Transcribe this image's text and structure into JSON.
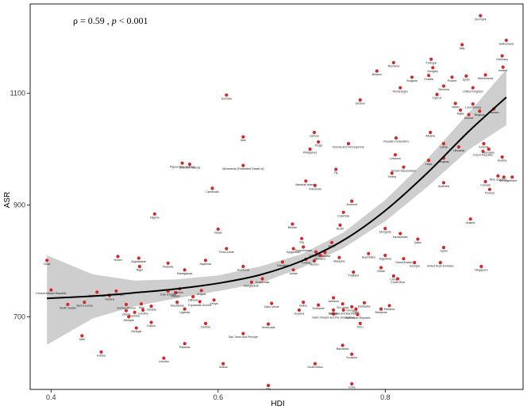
{
  "chart_data": {
    "type": "scatter",
    "title": "",
    "xlabel": "HDI",
    "ylabel": "ASR",
    "xlim": [
      0.375,
      0.965
    ],
    "ylim": [
      570,
      1260
    ],
    "xticks": [
      0.4,
      0.6,
      0.8
    ],
    "yticks": [
      700,
      900,
      1100
    ],
    "annotation": "ρ = 0.59 ,  p < 0.001",
    "grid": false,
    "legend": "none",
    "point_color": "#d62728",
    "fit_line": [
      [
        0.395,
        733
      ],
      [
        0.45,
        737
      ],
      [
        0.5,
        743
      ],
      [
        0.55,
        750
      ],
      [
        0.6,
        760
      ],
      [
        0.65,
        775
      ],
      [
        0.7,
        800
      ],
      [
        0.75,
        837
      ],
      [
        0.8,
        890
      ],
      [
        0.85,
        957
      ],
      [
        0.9,
        1032
      ],
      [
        0.945,
        1093
      ]
    ],
    "ci_upper": [
      [
        0.395,
        810
      ],
      [
        0.45,
        776
      ],
      [
        0.5,
        765
      ],
      [
        0.55,
        767
      ],
      [
        0.6,
        774
      ],
      [
        0.65,
        790
      ],
      [
        0.7,
        812
      ],
      [
        0.75,
        851
      ],
      [
        0.8,
        909
      ],
      [
        0.85,
        982
      ],
      [
        0.9,
        1065
      ],
      [
        0.945,
        1143
      ]
    ],
    "ci_lower": [
      [
        0.395,
        650
      ],
      [
        0.45,
        697
      ],
      [
        0.5,
        719
      ],
      [
        0.55,
        733
      ],
      [
        0.6,
        746
      ],
      [
        0.65,
        760
      ],
      [
        0.7,
        788
      ],
      [
        0.75,
        823
      ],
      [
        0.8,
        871
      ],
      [
        0.85,
        932
      ],
      [
        0.9,
        999
      ],
      [
        0.945,
        1043
      ]
    ],
    "points": [
      {
        "x": 0.914,
        "y": 1239,
        "label": "Denmark"
      },
      {
        "x": 0.945,
        "y": 1195,
        "label": "Switzerland"
      },
      {
        "x": 0.892,
        "y": 1187,
        "label": "Italy"
      },
      {
        "x": 0.94,
        "y": 1167,
        "label": "Germany"
      },
      {
        "x": 0.941,
        "y": 1147,
        "label": "Ireland"
      },
      {
        "x": 0.855,
        "y": 1161,
        "label": "Portugal"
      },
      {
        "x": 0.81,
        "y": 1155,
        "label": "Romania"
      },
      {
        "x": 0.857,
        "y": 1146,
        "label": "Hungary"
      },
      {
        "x": 0.79,
        "y": 1140,
        "label": "Belarus"
      },
      {
        "x": 0.832,
        "y": 1129,
        "label": "Bulgaria"
      },
      {
        "x": 0.852,
        "y": 1132,
        "label": "Croatia"
      },
      {
        "x": 0.88,
        "y": 1129,
        "label": "Poland"
      },
      {
        "x": 0.897,
        "y": 1131,
        "label": "Spain"
      },
      {
        "x": 0.92,
        "y": 1133,
        "label": "Netherlands"
      },
      {
        "x": 0.87,
        "y": 1113,
        "label": "Slovenia"
      },
      {
        "x": 0.818,
        "y": 1110,
        "label": "Montenegro"
      },
      {
        "x": 0.862,
        "y": 1098,
        "label": "Cyprus"
      },
      {
        "x": 0.905,
        "y": 1110,
        "label": "United Kingdom"
      },
      {
        "x": 0.77,
        "y": 1088,
        "label": "Ukraine"
      },
      {
        "x": 0.884,
        "y": 1082,
        "label": "Japan"
      },
      {
        "x": 0.905,
        "y": 1081,
        "label": "Luxembourg"
      },
      {
        "x": 0.93,
        "y": 1072,
        "label": "Sweden"
      },
      {
        "x": 0.89,
        "y": 1070,
        "label": "Malta"
      },
      {
        "x": 0.9,
        "y": 1062,
        "label": "Greece"
      },
      {
        "x": 0.913,
        "y": 1068,
        "label": "Belgium"
      },
      {
        "x": 0.61,
        "y": 1097,
        "label": "Somalia"
      },
      {
        "x": 0.63,
        "y": 1022,
        "label": "Mali"
      },
      {
        "x": 0.715,
        "y": 1030,
        "label": "Samoa"
      },
      {
        "x": 0.72,
        "y": 1013,
        "label": "Tonga"
      },
      {
        "x": 0.71,
        "y": 1000,
        "label": "Philippines"
      },
      {
        "x": 0.756,
        "y": 1010,
        "label": "Bosnia and Herzegovina"
      },
      {
        "x": 0.813,
        "y": 1020,
        "label": "Russian Federation"
      },
      {
        "x": 0.854,
        "y": 1030,
        "label": "Albania"
      },
      {
        "x": 0.87,
        "y": 1010,
        "label": "Latvia"
      },
      {
        "x": 0.888,
        "y": 1004,
        "label": "Lithuania"
      },
      {
        "x": 0.918,
        "y": 1010,
        "label": "Estonia"
      },
      {
        "x": 0.924,
        "y": 1000,
        "label": "Slovakia"
      },
      {
        "x": 0.917,
        "y": 996,
        "label": "Czech Republic"
      },
      {
        "x": 0.94,
        "y": 986,
        "label": "Austria"
      },
      {
        "x": 0.812,
        "y": 990,
        "label": "Lebanon"
      },
      {
        "x": 0.822,
        "y": 968,
        "label": "Brunei Darussalam"
      },
      {
        "x": 0.852,
        "y": 980,
        "label": "Libya"
      },
      {
        "x": 0.87,
        "y": 984,
        "label": "Uruguay"
      },
      {
        "x": 0.808,
        "y": 957,
        "label": "Turkey"
      },
      {
        "x": 0.741,
        "y": 964,
        "label": "Fiji"
      },
      {
        "x": 0.557,
        "y": 975,
        "label": "Papua New Guinea"
      },
      {
        "x": 0.566,
        "y": 973,
        "label": "Solomon Islands"
      },
      {
        "x": 0.63,
        "y": 971,
        "label": "Micronesia (Federated States of)"
      },
      {
        "x": 0.705,
        "y": 943,
        "label": "Marshall Islands"
      },
      {
        "x": 0.716,
        "y": 935,
        "label": "Indonesia"
      },
      {
        "x": 0.87,
        "y": 940,
        "label": "Australia"
      },
      {
        "x": 0.92,
        "y": 942,
        "label": "Canada"
      },
      {
        "x": 0.935,
        "y": 952,
        "label": "New Zealand"
      },
      {
        "x": 0.942,
        "y": 950,
        "label": "Norway"
      },
      {
        "x": 0.952,
        "y": 950,
        "label": "Iceland"
      },
      {
        "x": 0.925,
        "y": 928,
        "label": "Finland"
      },
      {
        "x": 0.593,
        "y": 930,
        "label": "Cambodia"
      },
      {
        "x": 0.76,
        "y": 907,
        "label": "Armenia"
      },
      {
        "x": 0.75,
        "y": 887,
        "label": "Colombia"
      },
      {
        "x": 0.902,
        "y": 875,
        "label": "Austria"
      },
      {
        "x": 0.524,
        "y": 884,
        "label": "Nigeria"
      },
      {
        "x": 0.6,
        "y": 857,
        "label": "Nepal"
      },
      {
        "x": 0.689,
        "y": 866,
        "label": "Bhutan"
      },
      {
        "x": 0.746,
        "y": 864,
        "label": "Brazil"
      },
      {
        "x": 0.8,
        "y": 858,
        "label": "Mongolia"
      },
      {
        "x": 0.818,
        "y": 849,
        "label": "Kazakhstan"
      },
      {
        "x": 0.839,
        "y": 839,
        "label": "Qatar"
      },
      {
        "x": 0.7,
        "y": 840,
        "label": "Iraq"
      },
      {
        "x": 0.736,
        "y": 833,
        "label": "Israel"
      },
      {
        "x": 0.87,
        "y": 824,
        "label": "Spain"
      },
      {
        "x": 0.61,
        "y": 822,
        "label": "Timor-Leste"
      },
      {
        "x": 0.69,
        "y": 822,
        "label": "Kyrgyzstan"
      },
      {
        "x": 0.702,
        "y": 825,
        "label": "Turkmenistan"
      },
      {
        "x": 0.717,
        "y": 816,
        "label": "Uzbekistan"
      },
      {
        "x": 0.728,
        "y": 815,
        "label": "Moldova"
      },
      {
        "x": 0.722,
        "y": 810,
        "label": "Morocco"
      },
      {
        "x": 0.745,
        "y": 806,
        "label": "Malaysia"
      },
      {
        "x": 0.78,
        "y": 813,
        "label": "Seychelles"
      },
      {
        "x": 0.8,
        "y": 810,
        "label": "Argentina"
      },
      {
        "x": 0.822,
        "y": 804,
        "label": "Saudi Arabia"
      },
      {
        "x": 0.835,
        "y": 797,
        "label": "Georgia"
      },
      {
        "x": 0.866,
        "y": 797,
        "label": "United Arab Emirates"
      },
      {
        "x": 0.915,
        "y": 790,
        "label": "Singapore"
      },
      {
        "x": 0.395,
        "y": 801,
        "label": "Chad"
      },
      {
        "x": 0.48,
        "y": 808,
        "label": "Yemen"
      },
      {
        "x": 0.505,
        "y": 805,
        "label": "Afghanistan"
      },
      {
        "x": 0.506,
        "y": 790,
        "label": "Niger"
      },
      {
        "x": 0.54,
        "y": 796,
        "label": "Rwanda"
      },
      {
        "x": 0.56,
        "y": 784,
        "label": "Madagascar"
      },
      {
        "x": 0.585,
        "y": 801,
        "label": "Myanmar"
      },
      {
        "x": 0.63,
        "y": 790,
        "label": "Honduras"
      },
      {
        "x": 0.677,
        "y": 798,
        "label": "Eswatini"
      },
      {
        "x": 0.69,
        "y": 784,
        "label": "Jordan"
      },
      {
        "x": 0.705,
        "y": 803,
        "label": "Tunisia"
      },
      {
        "x": 0.715,
        "y": 800,
        "label": "Mexico"
      },
      {
        "x": 0.762,
        "y": 780,
        "label": "Thailand"
      },
      {
        "x": 0.795,
        "y": 788,
        "label": "Oman"
      },
      {
        "x": 0.81,
        "y": 773,
        "label": "China"
      },
      {
        "x": 0.815,
        "y": 768,
        "label": "Costa Rica"
      },
      {
        "x": 0.653,
        "y": 768,
        "label": "Guatemala"
      },
      {
        "x": 0.64,
        "y": 762,
        "label": "Bangladesh"
      },
      {
        "x": 0.4,
        "y": 748,
        "label": "Central African Republic"
      },
      {
        "x": 0.455,
        "y": 744,
        "label": "Burkina Faso"
      },
      {
        "x": 0.47,
        "y": 738,
        "label": "Guinea"
      },
      {
        "x": 0.478,
        "y": 746,
        "label": "Mozambique"
      },
      {
        "x": 0.44,
        "y": 726,
        "label": "Sierra Leone"
      },
      {
        "x": 0.42,
        "y": 722,
        "label": "South Sudan"
      },
      {
        "x": 0.54,
        "y": 746,
        "label": "Cote d'Ivoire"
      },
      {
        "x": 0.549,
        "y": 743,
        "label": "Malawi"
      },
      {
        "x": 0.554,
        "y": 750,
        "label": "Benin"
      },
      {
        "x": 0.58,
        "y": 747,
        "label": "Angola"
      },
      {
        "x": 0.57,
        "y": 736,
        "label": "Djibouti"
      },
      {
        "x": 0.49,
        "y": 722,
        "label": "Guinea-Bissau"
      },
      {
        "x": 0.508,
        "y": 723,
        "label": "Togo"
      },
      {
        "x": 0.52,
        "y": 719,
        "label": "Zambia"
      },
      {
        "x": 0.551,
        "y": 726,
        "label": "Mauritania"
      },
      {
        "x": 0.56,
        "y": 714,
        "label": "Uganda"
      },
      {
        "x": 0.578,
        "y": 727,
        "label": "Equatorial Guinea"
      },
      {
        "x": 0.595,
        "y": 730,
        "label": "Kenya"
      },
      {
        "x": 0.49,
        "y": 711,
        "label": "Liberia"
      },
      {
        "x": 0.5,
        "y": 708,
        "label": "Gambia"
      },
      {
        "x": 0.51,
        "y": 712,
        "label": "Lesotho"
      },
      {
        "x": 0.493,
        "y": 700,
        "label": "Ethiopia"
      },
      {
        "x": 0.664,
        "y": 724,
        "label": "Cabo Verde"
      },
      {
        "x": 0.697,
        "y": 712,
        "label": "Guyana"
      },
      {
        "x": 0.702,
        "y": 726,
        "label": "Belize"
      },
      {
        "x": 0.72,
        "y": 721,
        "label": "Suriname"
      },
      {
        "x": 0.738,
        "y": 734,
        "label": "Jamaica"
      },
      {
        "x": 0.738,
        "y": 712,
        "label": "Bahrain"
      },
      {
        "x": 0.738,
        "y": 705,
        "label": "Saint Vincent and the Grenadines"
      },
      {
        "x": 0.749,
        "y": 723,
        "label": "Sri Lanka"
      },
      {
        "x": 0.75,
        "y": 712,
        "label": "Antigua and Barbuda"
      },
      {
        "x": 0.76,
        "y": 718,
        "label": "Grenada"
      },
      {
        "x": 0.765,
        "y": 714,
        "label": "Chile"
      },
      {
        "x": 0.775,
        "y": 725,
        "label": "Barbados"
      },
      {
        "x": 0.805,
        "y": 720,
        "label": "Panama"
      },
      {
        "x": 0.795,
        "y": 714,
        "label": "Bahamas"
      },
      {
        "x": 0.767,
        "y": 704,
        "label": "Dominican Republic"
      },
      {
        "x": 0.77,
        "y": 688,
        "label": "Peru"
      },
      {
        "x": 0.52,
        "y": 690,
        "label": "Gabon"
      },
      {
        "x": 0.502,
        "y": 680,
        "label": "Senegal"
      },
      {
        "x": 0.585,
        "y": 688,
        "label": "Zambia"
      },
      {
        "x": 0.66,
        "y": 687,
        "label": "Venezuela"
      },
      {
        "x": 0.63,
        "y": 670,
        "label": "Sao Tome and Principe"
      },
      {
        "x": 0.437,
        "y": 666,
        "label": "Mali"
      },
      {
        "x": 0.56,
        "y": 652,
        "label": "Pakistan"
      },
      {
        "x": 0.46,
        "y": 637,
        "label": "Eritrea"
      },
      {
        "x": 0.535,
        "y": 626,
        "label": "Lesotho"
      },
      {
        "x": 0.606,
        "y": 616,
        "label": "Ghana"
      },
      {
        "x": 0.716,
        "y": 616,
        "label": "South Africa"
      },
      {
        "x": 0.749,
        "y": 649,
        "label": "Barbados"
      },
      {
        "x": 0.76,
        "y": 633,
        "label": "Ecuador"
      },
      {
        "x": 0.66,
        "y": 577,
        "label": "Iraq"
      },
      {
        "x": 0.76,
        "y": 580,
        "label": "Cuba"
      }
    ]
  }
}
